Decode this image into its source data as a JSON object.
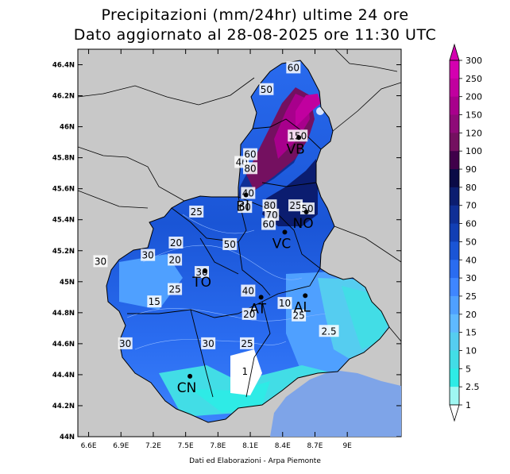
{
  "title": "Precipitazioni (mm/24hr) ultime 24 ore",
  "subtitle": "Dato aggiornato al 28-08-2025 ore 11:30 UTC",
  "credit": "Dati ed Elaborazioni - Arpa Piemonte",
  "axes": {
    "x_ticks": [
      "6.6E",
      "6.9E",
      "7.2E",
      "7.5E",
      "7.8E",
      "8.1E",
      "8.4E",
      "8.7E",
      "9E"
    ],
    "y_ticks": [
      "46.4N",
      "46.2N",
      "46N",
      "45.8N",
      "45.6N",
      "45.4N",
      "45.2N",
      "45N",
      "44.8N",
      "44.6N",
      "44.4N",
      "44.2N",
      "44N"
    ]
  },
  "colorbar": {
    "labels": [
      "300",
      "250",
      "200",
      "150",
      "120",
      "100",
      "90",
      "80",
      "70",
      "60",
      "50",
      "40",
      "30",
      "25",
      "20",
      "15",
      "10",
      "5",
      "2.5",
      "1"
    ],
    "colors": [
      "#d400b0",
      "#c1009f",
      "#a8008c",
      "#8e0a78",
      "#741060",
      "#40004a",
      "#0a0a46",
      "#0b1d70",
      "#0f2f96",
      "#123fb4",
      "#1a55d6",
      "#2a6cf0",
      "#3f86ff",
      "#4fa0ff",
      "#5fb9ff",
      "#55cdf0",
      "#42dde6",
      "#2eebe6",
      "#9ff7f2",
      "#ffffff"
    ]
  },
  "cities": [
    {
      "code": "TO",
      "lon": 7.68,
      "lat": 45.07
    },
    {
      "code": "CN",
      "lon": 7.54,
      "lat": 44.39
    },
    {
      "code": "AT",
      "lon": 8.2,
      "lat": 44.9
    },
    {
      "code": "AL",
      "lon": 8.61,
      "lat": 44.91
    },
    {
      "code": "BI",
      "lon": 8.06,
      "lat": 45.56
    },
    {
      "code": "VC",
      "lon": 8.42,
      "lat": 45.32
    },
    {
      "code": "NO",
      "lon": 8.62,
      "lat": 45.45
    },
    {
      "code": "VB",
      "lon": 8.55,
      "lat": 45.93
    }
  ],
  "contour_labels": [
    {
      "text": "60",
      "lon": 8.5,
      "lat": 46.38
    },
    {
      "text": "50",
      "lon": 8.25,
      "lat": 46.24
    },
    {
      "text": "150",
      "lon": 8.54,
      "lat": 45.94
    },
    {
      "text": "40",
      "lon": 8.02,
      "lat": 45.77
    },
    {
      "text": "60",
      "lon": 8.1,
      "lat": 45.82
    },
    {
      "text": "80",
      "lon": 8.1,
      "lat": 45.73
    },
    {
      "text": "40",
      "lon": 8.08,
      "lat": 45.57
    },
    {
      "text": "60",
      "lon": 8.05,
      "lat": 45.48
    },
    {
      "text": "80",
      "lon": 8.28,
      "lat": 45.49
    },
    {
      "text": "70",
      "lon": 8.3,
      "lat": 45.43
    },
    {
      "text": "60",
      "lon": 8.27,
      "lat": 45.37
    },
    {
      "text": "25",
      "lon": 8.52,
      "lat": 45.49
    },
    {
      "text": "50",
      "lon": 8.63,
      "lat": 45.47
    },
    {
      "text": "25",
      "lon": 7.6,
      "lat": 45.45
    },
    {
      "text": "20",
      "lon": 7.41,
      "lat": 45.25
    },
    {
      "text": "30",
      "lon": 7.15,
      "lat": 45.17
    },
    {
      "text": "20",
      "lon": 7.4,
      "lat": 45.14
    },
    {
      "text": "30",
      "lon": 6.71,
      "lat": 45.13
    },
    {
      "text": "50",
      "lon": 7.91,
      "lat": 45.24
    },
    {
      "text": "30",
      "lon": 7.65,
      "lat": 45.06
    },
    {
      "text": "25",
      "lon": 7.4,
      "lat": 44.95
    },
    {
      "text": "15",
      "lon": 7.21,
      "lat": 44.87
    },
    {
      "text": "40",
      "lon": 8.08,
      "lat": 44.94
    },
    {
      "text": "20",
      "lon": 8.09,
      "lat": 44.79
    },
    {
      "text": "10",
      "lon": 8.42,
      "lat": 44.86
    },
    {
      "text": "25",
      "lon": 8.55,
      "lat": 44.78
    },
    {
      "text": "2.5",
      "lon": 8.83,
      "lat": 44.68
    },
    {
      "text": "30",
      "lon": 6.94,
      "lat": 44.6
    },
    {
      "text": "30",
      "lon": 7.71,
      "lat": 44.6
    },
    {
      "text": "25",
      "lon": 8.07,
      "lat": 44.6
    },
    {
      "text": "1",
      "lon": 8.05,
      "lat": 44.42
    }
  ]
}
